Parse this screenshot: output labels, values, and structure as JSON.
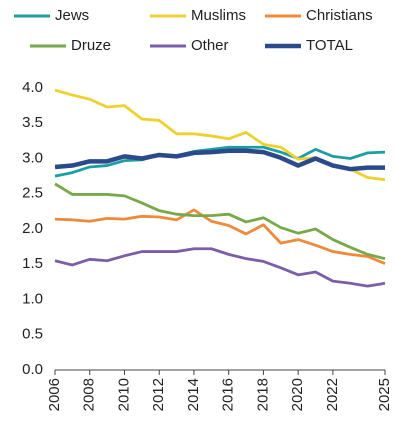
{
  "chart_data": {
    "type": "line",
    "legend": "top",
    "x": [
      2006,
      2007,
      2008,
      2009,
      2010,
      2011,
      2012,
      2013,
      2014,
      2015,
      2016,
      2017,
      2018,
      2019,
      2020,
      2021,
      2022,
      2023,
      2024,
      2025
    ],
    "xlim": [
      2006,
      2025
    ],
    "xticks": [
      2006,
      2008,
      2010,
      2012,
      2014,
      2016,
      2018,
      2020,
      2022,
      2025
    ],
    "ylim": [
      0,
      4
    ],
    "yticks": [
      {
        "value": 0,
        "label": "0.0"
      },
      0.5,
      {
        "value": 1,
        "label": "1.0"
      },
      1.5,
      {
        "value": 2,
        "label": "2.0"
      },
      2.5,
      {
        "value": 3,
        "label": "3.0"
      },
      3.5,
      {
        "value": 4,
        "label": "4.0"
      }
    ],
    "grid": false,
    "series": [
      {
        "name": "Jews",
        "color": "#1d9ea3",
        "values": [
          2.75,
          2.8,
          2.88,
          2.9,
          2.97,
          2.98,
          3.05,
          3.04,
          3.1,
          3.13,
          3.16,
          3.16,
          3.16,
          3.09,
          3.0,
          3.13,
          3.03,
          3.0,
          3.08,
          3.09
        ]
      },
      {
        "name": "Muslims",
        "color": "#f0d02e",
        "values": [
          3.97,
          3.9,
          3.84,
          3.73,
          3.75,
          3.56,
          3.54,
          3.35,
          3.35,
          3.32,
          3.28,
          3.37,
          3.2,
          3.16,
          2.99,
          3.01,
          2.91,
          2.85,
          2.73,
          2.7
        ]
      },
      {
        "name": "Christians",
        "color": "#ef8a3a",
        "values": [
          2.14,
          2.13,
          2.11,
          2.15,
          2.14,
          2.18,
          2.17,
          2.13,
          2.27,
          2.11,
          2.05,
          1.93,
          2.06,
          1.8,
          1.85,
          1.77,
          1.68,
          1.64,
          1.61,
          1.51
        ]
      },
      {
        "name": "Druze",
        "color": "#77a84a",
        "values": [
          2.64,
          2.49,
          2.49,
          2.49,
          2.47,
          2.37,
          2.26,
          2.21,
          2.19,
          2.19,
          2.21,
          2.1,
          2.16,
          2.02,
          1.94,
          2.0,
          1.85,
          1.74,
          1.64,
          1.58
        ]
      },
      {
        "name": "Other",
        "color": "#7b5ea7",
        "values": [
          1.55,
          1.49,
          1.57,
          1.55,
          1.62,
          1.68,
          1.68,
          1.68,
          1.72,
          1.72,
          1.64,
          1.58,
          1.54,
          1.45,
          1.35,
          1.39,
          1.26,
          1.23,
          1.19,
          1.23
        ]
      },
      {
        "name": "TOTAL",
        "color": "#2b4a8c",
        "values": [
          2.88,
          2.9,
          2.96,
          2.96,
          3.03,
          3.0,
          3.05,
          3.03,
          3.08,
          3.09,
          3.11,
          3.11,
          3.09,
          3.01,
          2.9,
          3.0,
          2.9,
          2.85,
          2.87,
          2.87
        ]
      }
    ]
  }
}
